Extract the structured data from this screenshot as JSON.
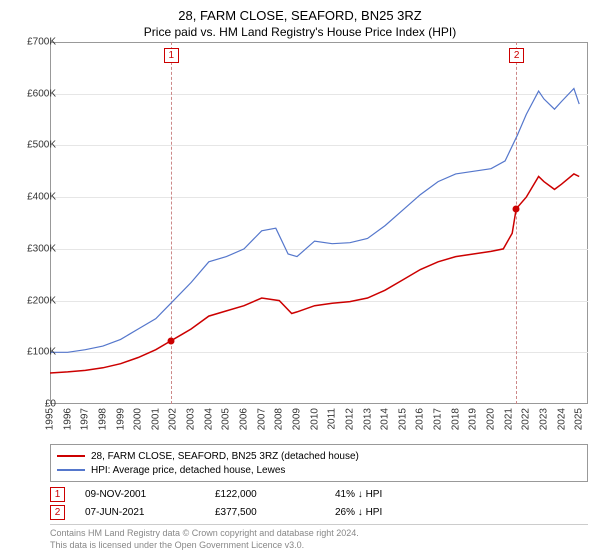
{
  "title": "28, FARM CLOSE, SEAFORD, BN25 3RZ",
  "subtitle": "Price paid vs. HM Land Registry's House Price Index (HPI)",
  "chart": {
    "type": "line",
    "background_color": "#ffffff",
    "grid_color": "#e6e6e6",
    "border_color": "#999999",
    "xlim": [
      1995,
      2025.5
    ],
    "ylim": [
      0,
      700000
    ],
    "ytick_step": 100000,
    "yticks": [
      "£0",
      "£100K",
      "£200K",
      "£300K",
      "£400K",
      "£500K",
      "£600K",
      "£700K"
    ],
    "xticks": [
      1995,
      1996,
      1997,
      1998,
      1999,
      2000,
      2001,
      2002,
      2003,
      2004,
      2005,
      2006,
      2007,
      2008,
      2009,
      2010,
      2011,
      2012,
      2013,
      2014,
      2015,
      2016,
      2017,
      2018,
      2019,
      2020,
      2021,
      2022,
      2023,
      2024,
      2025
    ],
    "tick_fontsize": 10,
    "series": [
      {
        "name": "paid",
        "label": "28, FARM CLOSE, SEAFORD, BN25 3RZ (detached house)",
        "color": "#cc0000",
        "line_width": 1.5,
        "points": [
          [
            1995,
            60000
          ],
          [
            1996,
            62000
          ],
          [
            1997,
            65000
          ],
          [
            1998,
            70000
          ],
          [
            1999,
            78000
          ],
          [
            2000,
            90000
          ],
          [
            2001,
            105000
          ],
          [
            2001.85,
            122000
          ],
          [
            2002.5,
            135000
          ],
          [
            2003,
            145000
          ],
          [
            2004,
            170000
          ],
          [
            2005,
            180000
          ],
          [
            2006,
            190000
          ],
          [
            2007,
            205000
          ],
          [
            2008,
            200000
          ],
          [
            2008.7,
            175000
          ],
          [
            2009,
            178000
          ],
          [
            2010,
            190000
          ],
          [
            2011,
            195000
          ],
          [
            2012,
            198000
          ],
          [
            2013,
            205000
          ],
          [
            2014,
            220000
          ],
          [
            2015,
            240000
          ],
          [
            2016,
            260000
          ],
          [
            2017,
            275000
          ],
          [
            2018,
            285000
          ],
          [
            2019,
            290000
          ],
          [
            2020,
            295000
          ],
          [
            2020.7,
            300000
          ],
          [
            2021.2,
            330000
          ],
          [
            2021.43,
            377500
          ],
          [
            2022,
            400000
          ],
          [
            2022.7,
            440000
          ],
          [
            2023,
            430000
          ],
          [
            2023.6,
            415000
          ],
          [
            2024,
            425000
          ],
          [
            2024.7,
            445000
          ],
          [
            2025,
            440000
          ]
        ]
      },
      {
        "name": "hpi",
        "label": "HPI: Average price, detached house, Lewes",
        "color": "#5577cc",
        "line_width": 1.2,
        "points": [
          [
            1995,
            100000
          ],
          [
            1996,
            100000
          ],
          [
            1997,
            105000
          ],
          [
            1998,
            112000
          ],
          [
            1999,
            125000
          ],
          [
            2000,
            145000
          ],
          [
            2001,
            165000
          ],
          [
            2002,
            200000
          ],
          [
            2003,
            235000
          ],
          [
            2004,
            275000
          ],
          [
            2005,
            285000
          ],
          [
            2006,
            300000
          ],
          [
            2007,
            335000
          ],
          [
            2007.8,
            340000
          ],
          [
            2008.5,
            290000
          ],
          [
            2009,
            285000
          ],
          [
            2010,
            315000
          ],
          [
            2011,
            310000
          ],
          [
            2012,
            312000
          ],
          [
            2013,
            320000
          ],
          [
            2014,
            345000
          ],
          [
            2015,
            375000
          ],
          [
            2016,
            405000
          ],
          [
            2017,
            430000
          ],
          [
            2018,
            445000
          ],
          [
            2019,
            450000
          ],
          [
            2020,
            455000
          ],
          [
            2020.8,
            470000
          ],
          [
            2021.5,
            520000
          ],
          [
            2022,
            560000
          ],
          [
            2022.7,
            605000
          ],
          [
            2023,
            590000
          ],
          [
            2023.6,
            570000
          ],
          [
            2024,
            585000
          ],
          [
            2024.7,
            610000
          ],
          [
            2025,
            580000
          ]
        ]
      }
    ],
    "sale_markers": [
      {
        "n": "1",
        "x": 2001.85,
        "price": 122000
      },
      {
        "n": "2",
        "x": 2021.43,
        "price": 377500
      }
    ]
  },
  "legend": {
    "border_color": "#999999",
    "fontsize": 10
  },
  "sales": [
    {
      "n": "1",
      "date": "09-NOV-2001",
      "price": "£122,000",
      "diff": "41% ↓ HPI"
    },
    {
      "n": "2",
      "date": "07-JUN-2021",
      "price": "£377,500",
      "diff": "26% ↓ HPI"
    }
  ],
  "footer_line1": "Contains HM Land Registry data © Crown copyright and database right 2024.",
  "footer_line2": "This data is licensed under the Open Government Licence v3.0.",
  "colors": {
    "marker_border": "#cc0000",
    "footer_text": "#888888"
  }
}
